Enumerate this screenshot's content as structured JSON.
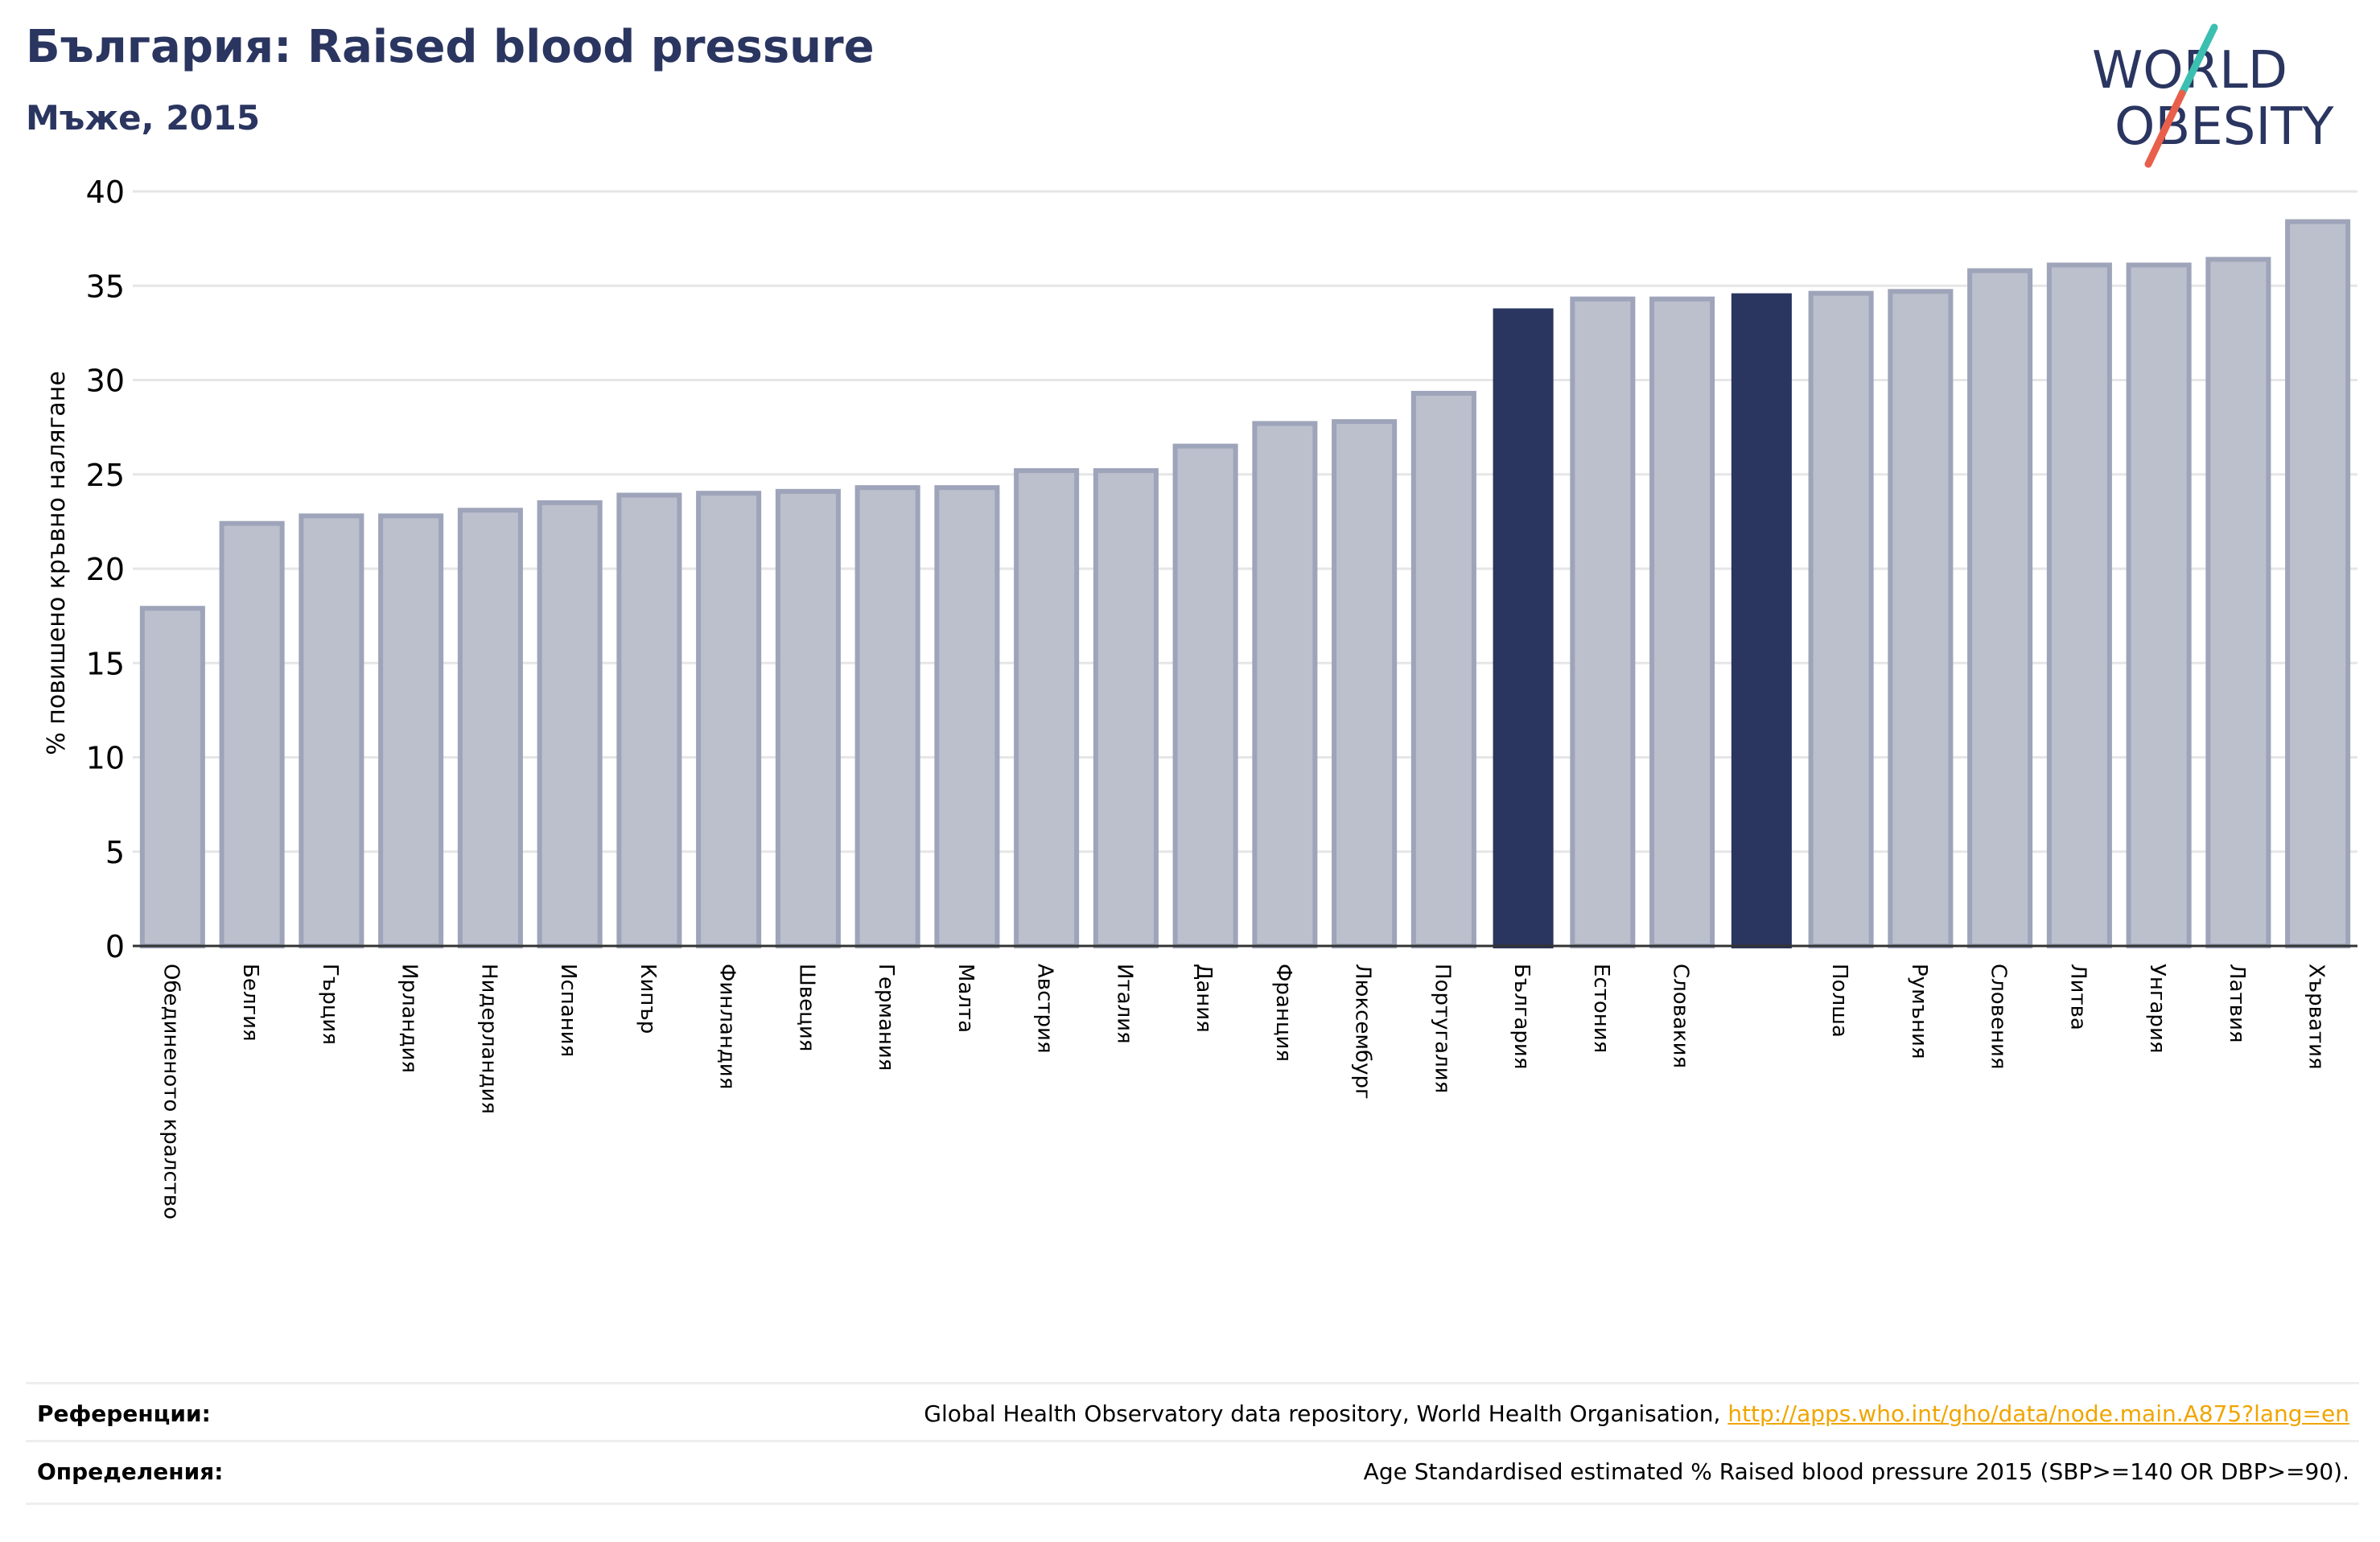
{
  "header": {
    "title": "България: Raised blood pressure",
    "subtitle": "Мъже, 2015"
  },
  "logo": {
    "line1": "WORLD",
    "line2": "OBESITY",
    "slash_colors": [
      "#3bbfb0",
      "#e8604c"
    ],
    "text_color": "#2a3560"
  },
  "chart_data": {
    "type": "bar",
    "ylabel": "% повишено кръвно налягане",
    "ylim": [
      0,
      40
    ],
    "yticks": [
      0,
      5,
      10,
      15,
      20,
      25,
      30,
      35,
      40
    ],
    "grid": true,
    "categories": [
      "Обединеното кралство",
      "Белгия",
      "Гърция",
      "Ирландия",
      "Нидерландия",
      "Испания",
      "Кипър",
      "Финландия",
      "Швеция",
      "Германия",
      "Малта",
      "Австрия",
      "Италия",
      "Дания",
      "Франция",
      "Люксембург",
      "Португалия",
      "България",
      "Естония",
      "Словакия",
      "",
      "Полша",
      "Румъния",
      "Словения",
      "Литва",
      "Унгария",
      "Латвия",
      "Хърватия"
    ],
    "values": [
      17.9,
      22.4,
      22.8,
      22.8,
      23.1,
      23.5,
      23.9,
      24.0,
      24.1,
      24.3,
      24.3,
      25.2,
      25.2,
      26.5,
      27.7,
      27.8,
      29.3,
      33.8,
      34.3,
      34.3,
      34.6,
      34.6,
      34.7,
      35.8,
      36.1,
      36.1,
      36.4,
      38.4
    ],
    "highlighted": [
      17,
      20
    ],
    "colors": {
      "bar": "#bcc0cd",
      "bar_edge": "#9ea4b9",
      "highlight": "#2a3560",
      "grid": "#e6e6e6",
      "axis": "#333333"
    }
  },
  "references": {
    "refs_label": "Референции:",
    "refs_text": "Global Health Observatory data repository, World Health Organisation, ",
    "refs_link": "http://apps.who.int/gho/data/node.main.A875?lang=en",
    "defs_label": "Определения:",
    "defs_text": "Age Standardised estimated % Raised blood pressure 2015 (SBP>=140 OR DBP>=90)."
  }
}
